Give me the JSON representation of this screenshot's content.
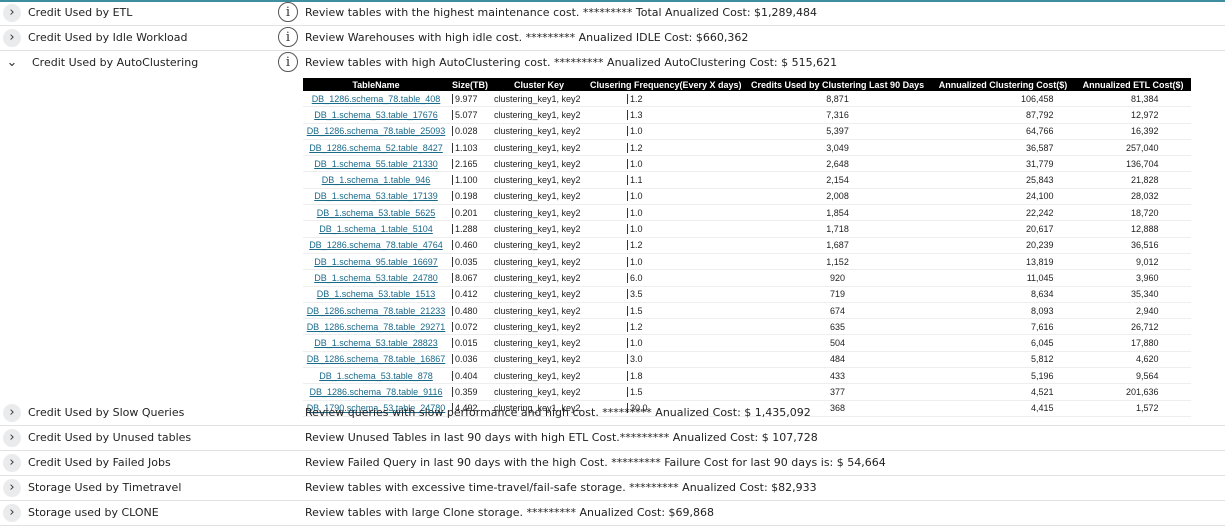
{
  "sections": [
    {
      "title": "Credit Used by ETL",
      "description": "Review tables with the highest maintenance cost. ********* Total Anualized Cost: $1,289,484",
      "info": "i"
    },
    {
      "title": "Credit Used by Idle Workload",
      "description": "Review Warehouses with high idle cost. ********* Anualized IDLE Cost: $660,362",
      "info": "i"
    },
    {
      "title": "Credit Used by AutoClustering",
      "description": "Review tables with high AutoClustering cost. ********* Anualized AutoClustering Cost: $ 515,621",
      "info": "i",
      "expanded": true
    }
  ],
  "table": {
    "headers": [
      "TableName",
      "Size(TB)",
      "Cluster Key",
      "Clusering Frequency(Every X days)",
      "Credits Used by Clustering Last 90 Days",
      "Annualized Clustering Cost($)",
      "Annualized ETL Cost($)"
    ],
    "rows": [
      [
        "DB_1286.schema_78.table_408",
        "9.977",
        "clustering_key1, key2",
        "1.2",
        "8,871",
        "106,458",
        "81,384"
      ],
      [
        "DB_1.schema_53.table_17676",
        "5.077",
        "clustering_key1, key2",
        "1.3",
        "7,316",
        "87,792",
        "12,972"
      ],
      [
        "DB_1286.schema_78.table_25093",
        "0.028",
        "clustering_key1, key2",
        "1.0",
        "5,397",
        "64,766",
        "16,392"
      ],
      [
        "DB_1286.schema_52.table_8427",
        "1.103",
        "clustering_key1, key2",
        "1.2",
        "3,049",
        "36,587",
        "257,040"
      ],
      [
        "DB_1.schema_55.table_21330",
        "2.165",
        "clustering_key1, key2",
        "1.0",
        "2,648",
        "31,779",
        "136,704"
      ],
      [
        "DB_1.schema_1.table_946",
        "1.100",
        "clustering_key1, key2",
        "1.1",
        "2,154",
        "25,843",
        "21,828"
      ],
      [
        "DB_1.schema_53.table_17139",
        "0.198",
        "clustering_key1, key2",
        "1.0",
        "2,008",
        "24,100",
        "28,032"
      ],
      [
        "DB_1.schema_53.table_5625",
        "0.201",
        "clustering_key1, key2",
        "1.0",
        "1,854",
        "22,242",
        "18,720"
      ],
      [
        "DB_1.schema_1.table_5104",
        "1.288",
        "clustering_key1, key2",
        "1.0",
        "1,718",
        "20,617",
        "12,888"
      ],
      [
        "DB_1286.schema_78.table_4764",
        "0.460",
        "clustering_key1, key2",
        "1.2",
        "1,687",
        "20,239",
        "36,516"
      ],
      [
        "DB_1.schema_95.table_16697",
        "0.035",
        "clustering_key1, key2",
        "1.0",
        "1,152",
        "13,819",
        "9,012"
      ],
      [
        "DB_1.schema_53.table_24780",
        "8.067",
        "clustering_key1, key2",
        "6.0",
        "920",
        "11,045",
        "3,960"
      ],
      [
        "DB_1.schema_53.table_1513",
        "0.412",
        "clustering_key1, key2",
        "3.5",
        "719",
        "8,634",
        "35,340"
      ],
      [
        "DB_1286.schema_78.table_21233",
        "0.480",
        "clustering_key1, key2",
        "1.5",
        "674",
        "8,093",
        "2,940"
      ],
      [
        "DB_1286.schema_78.table_29271",
        "0.072",
        "clustering_key1, key2",
        "1.2",
        "635",
        "7,616",
        "26,712"
      ],
      [
        "DB_1.schema_53.table_28823",
        "0.015",
        "clustering_key1, key2",
        "1.0",
        "504",
        "6,045",
        "17,880"
      ],
      [
        "DB_1286.schema_78.table_16867",
        "0.036",
        "clustering_key1, key2",
        "3.0",
        "484",
        "5,812",
        "4,620"
      ],
      [
        "DB_1.schema_53.table_878",
        "0.404",
        "clustering_key1, key2",
        "1.8",
        "433",
        "5,196",
        "9,564"
      ],
      [
        "DB_1286.schema_78.table_9116",
        "0.359",
        "clustering_key1, key2",
        "1.5",
        "377",
        "4,521",
        "201,636"
      ],
      [
        "DB_1790.schema_53.table_24780",
        "4.492",
        "clustering_key1, key2",
        "30.0",
        "368",
        "4,415",
        "1,572"
      ]
    ]
  },
  "sections_after": [
    {
      "title": "Credit Used by Slow Queries",
      "description": "Review queries with slow performance and high cost. ********* Anualized Cost: $ 1,435,092"
    },
    {
      "title": "Credit Used by Unused tables",
      "description": "Review Unused Tables in last 90 days with high ETL Cost.********* Anualized Cost: $ 107,728"
    },
    {
      "title": "Credit Used by Failed Jobs",
      "description": "Review Failed Query in last 90 days with the high Cost. ********* Failure Cost for last 90 days is: $ 54,664"
    },
    {
      "title": "Storage Used by Timetravel",
      "description": "Review tables with excessive time-travel/fail-safe storage. ********* Anualized Cost: $82,933"
    },
    {
      "title": "Storage used by CLONE",
      "description": "Review tables with large Clone storage. ********* Anualized Cost: $69,868"
    }
  ],
  "icons": {
    "collapsed": "chevron-right-icon",
    "expanded": "chevron-down-icon",
    "info": "info-icon"
  }
}
